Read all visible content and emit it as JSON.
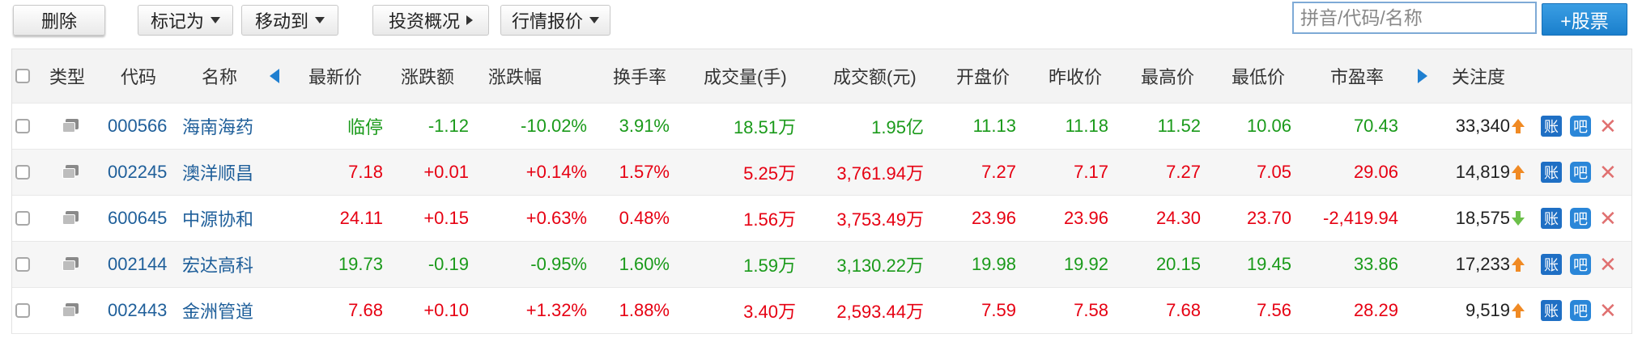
{
  "toolbar": {
    "delete_label": "删除",
    "mark_label": "标记为",
    "move_label": "移动到",
    "overview_label": "投资概况",
    "quote_label": "行情报价",
    "search_placeholder": "拼音/代码/名称",
    "add_label": "+股票"
  },
  "table": {
    "headers": {
      "type": "类型",
      "code": "代码",
      "name": "名称",
      "price": "最新价",
      "change": "涨跌额",
      "pct": "涨跌幅",
      "turnover": "换手率",
      "volume": "成交量(手)",
      "amount": "成交额(元)",
      "open": "开盘价",
      "prev_close": "昨收价",
      "high": "最高价",
      "low": "最低价",
      "pe": "市盈率",
      "attention": "关注度"
    },
    "rows": [
      {
        "code": "000566",
        "name": "海南海药",
        "price": "临停",
        "change": "-1.12",
        "pct": "-10.02%",
        "turnover": "3.91%",
        "volume": "18.51万",
        "amount": "1.95亿",
        "open": "11.13",
        "prev_close": "11.18",
        "high": "11.52",
        "low": "10.06",
        "pe": "70.43",
        "attention": "33,340",
        "trend": "up",
        "color": "down",
        "account_icon": "账",
        "bar_icon": "吧",
        "remove_icon": "✕"
      },
      {
        "code": "002245",
        "name": "澳洋顺昌",
        "price": "7.18",
        "change": "+0.01",
        "pct": "+0.14%",
        "turnover": "1.57%",
        "volume": "5.25万",
        "amount": "3,761.94万",
        "open": "7.27",
        "prev_close": "7.17",
        "high": "7.27",
        "low": "7.05",
        "pe": "29.06",
        "attention": "14,819",
        "trend": "up",
        "color": "up",
        "account_icon": "账",
        "bar_icon": "吧",
        "remove_icon": "✕"
      },
      {
        "code": "600645",
        "name": "中源协和",
        "price": "24.11",
        "change": "+0.15",
        "pct": "+0.63%",
        "turnover": "0.48%",
        "volume": "1.56万",
        "amount": "3,753.49万",
        "open": "23.96",
        "prev_close": "23.96",
        "high": "24.30",
        "low": "23.70",
        "pe": "-2,419.94",
        "attention": "18,575",
        "trend": "down",
        "color": "up",
        "account_icon": "账",
        "bar_icon": "吧",
        "remove_icon": "✕"
      },
      {
        "code": "002144",
        "name": "宏达高科",
        "price": "19.73",
        "change": "-0.19",
        "pct": "-0.95%",
        "turnover": "1.60%",
        "volume": "1.59万",
        "amount": "3,130.22万",
        "open": "19.98",
        "prev_close": "19.92",
        "high": "20.15",
        "low": "19.45",
        "pe": "33.86",
        "attention": "17,233",
        "trend": "up",
        "color": "down",
        "account_icon": "账",
        "bar_icon": "吧",
        "remove_icon": "✕"
      },
      {
        "code": "002443",
        "name": "金洲管道",
        "price": "7.68",
        "change": "+0.10",
        "pct": "+1.32%",
        "turnover": "1.88%",
        "volume": "3.40万",
        "amount": "2,593.44万",
        "open": "7.59",
        "prev_close": "7.58",
        "high": "7.68",
        "low": "7.56",
        "pe": "28.29",
        "attention": "9,519",
        "trend": "up",
        "color": "up",
        "account_icon": "账",
        "bar_icon": "吧",
        "remove_icon": "✕"
      }
    ]
  },
  "colors": {
    "up": "#e60012",
    "down": "#1a9a1a",
    "link": "#1f5f9a",
    "accent": "#1f7fd0"
  }
}
